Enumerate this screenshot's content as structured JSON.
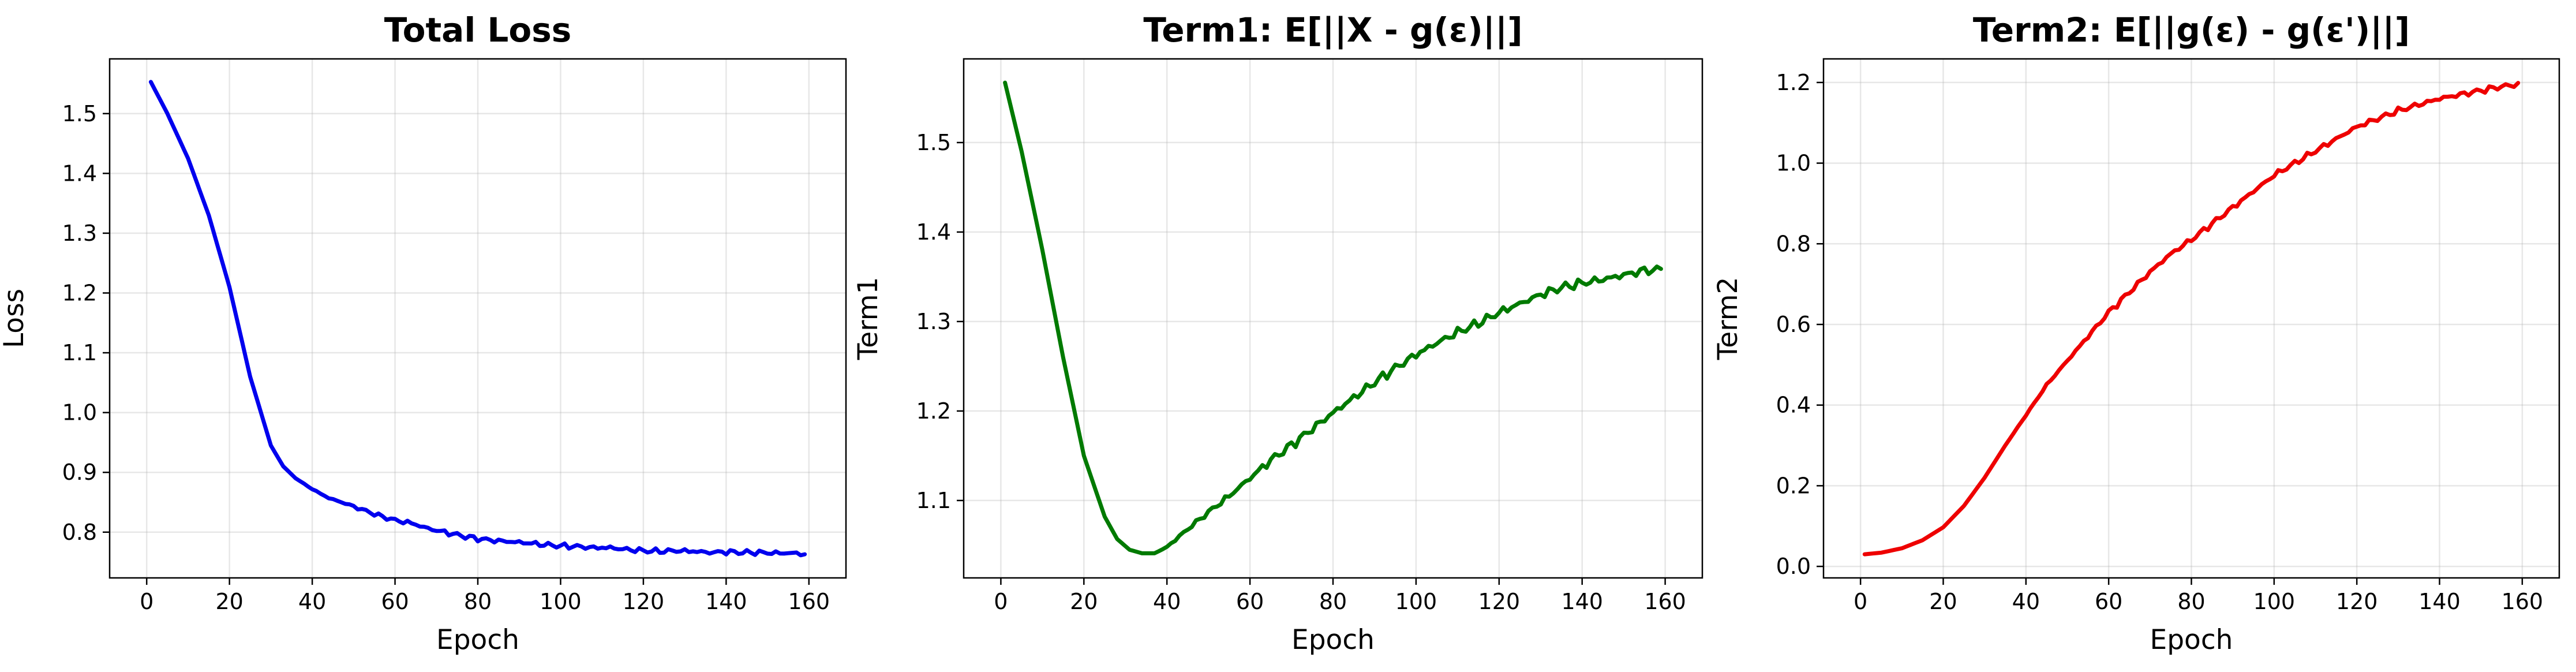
{
  "chart_data": [
    {
      "type": "line",
      "title": "Total Loss",
      "xlabel": "Epoch",
      "ylabel": "Loss",
      "xlim": [
        -8.95,
        168.95
      ],
      "ylim": [
        0.7235,
        1.5915
      ],
      "xticks": [
        0,
        20,
        40,
        60,
        80,
        100,
        120,
        140,
        160
      ],
      "xtick_labels": [
        "0",
        "20",
        "40",
        "60",
        "80",
        "100",
        "120",
        "140",
        "160"
      ],
      "yticks": [
        0.8,
        0.9,
        1.0,
        1.1,
        1.2,
        1.3,
        1.4,
        1.5
      ],
      "ytick_labels": [
        "0.8",
        "0.9",
        "1.0",
        "1.1",
        "1.2",
        "1.3",
        "1.4",
        "1.5"
      ],
      "grid": true,
      "color": "#0000ee",
      "series": [
        {
          "x": [
            1,
            5,
            10,
            15,
            20,
            25,
            30,
            33,
            36,
            40,
            44,
            48,
            52,
            56,
            60,
            64,
            68,
            72,
            76,
            80,
            84,
            88,
            92,
            96,
            100,
            104,
            108,
            112,
            116,
            120,
            124,
            128,
            132,
            136,
            140,
            144,
            148,
            152,
            156,
            159
          ],
          "y": [
            1.553,
            1.5,
            1.425,
            1.33,
            1.21,
            1.06,
            0.945,
            0.91,
            0.89,
            0.872,
            0.857,
            0.848,
            0.838,
            0.828,
            0.82,
            0.815,
            0.806,
            0.8,
            0.794,
            0.789,
            0.786,
            0.784,
            0.782,
            0.779,
            0.777,
            0.776,
            0.774,
            0.774,
            0.771,
            0.769,
            0.768,
            0.769,
            0.768,
            0.766,
            0.767,
            0.766,
            0.766,
            0.765,
            0.765,
            0.763
          ]
        }
      ]
    },
    {
      "type": "line",
      "title": "Term1: E[||X - g(ε)||]",
      "xlabel": "Epoch",
      "ylabel": "Term1",
      "xlim": [
        -8.95,
        168.95
      ],
      "ylim": [
        1.0135,
        1.5935
      ],
      "xticks": [
        0,
        20,
        40,
        60,
        80,
        100,
        120,
        140,
        160
      ],
      "xtick_labels": [
        "0",
        "20",
        "40",
        "60",
        "80",
        "100",
        "120",
        "140",
        "160"
      ],
      "yticks": [
        1.1,
        1.2,
        1.3,
        1.4,
        1.5
      ],
      "ytick_labels": [
        "1.1",
        "1.2",
        "1.3",
        "1.4",
        "1.5"
      ],
      "grid": true,
      "color": "#007a00",
      "series": [
        {
          "x": [
            1,
            5,
            10,
            15,
            20,
            25,
            28,
            31,
            34,
            37,
            40,
            45,
            50,
            55,
            60,
            65,
            70,
            75,
            80,
            85,
            90,
            95,
            100,
            105,
            110,
            115,
            120,
            125,
            130,
            135,
            140,
            145,
            150,
            155,
            159
          ],
          "y": [
            1.567,
            1.49,
            1.38,
            1.26,
            1.15,
            1.082,
            1.057,
            1.045,
            1.041,
            1.041,
            1.048,
            1.068,
            1.087,
            1.105,
            1.125,
            1.145,
            1.162,
            1.18,
            1.198,
            1.215,
            1.232,
            1.248,
            1.263,
            1.276,
            1.288,
            1.298,
            1.31,
            1.32,
            1.33,
            1.338,
            1.343,
            1.347,
            1.352,
            1.357,
            1.358
          ]
        }
      ]
    },
    {
      "type": "line",
      "title": "Term2: E[||g(ε) - g(ε')||]",
      "xlabel": "Epoch",
      "ylabel": "Term2",
      "xlim": [
        -8.95,
        168.95
      ],
      "ylim": [
        -0.0285,
        1.2585
      ],
      "xticks": [
        0,
        20,
        40,
        60,
        80,
        100,
        120,
        140,
        160
      ],
      "xtick_labels": [
        "0",
        "20",
        "40",
        "60",
        "80",
        "100",
        "120",
        "140",
        "160"
      ],
      "yticks": [
        0.0,
        0.2,
        0.4,
        0.6,
        0.8,
        1.0,
        1.2
      ],
      "ytick_labels": [
        "0.0",
        "0.2",
        "0.4",
        "0.6",
        "0.8",
        "1.0",
        "1.2"
      ],
      "grid": true,
      "color": "#ee0000",
      "series": [
        {
          "x": [
            1,
            5,
            10,
            15,
            20,
            25,
            30,
            35,
            40,
            45,
            50,
            55,
            60,
            65,
            70,
            75,
            80,
            85,
            90,
            95,
            100,
            105,
            110,
            115,
            120,
            125,
            130,
            135,
            140,
            145,
            150,
            155,
            159
          ],
          "y": [
            0.03,
            0.034,
            0.045,
            0.065,
            0.097,
            0.15,
            0.22,
            0.3,
            0.375,
            0.45,
            0.51,
            0.57,
            0.63,
            0.68,
            0.73,
            0.775,
            0.81,
            0.85,
            0.89,
            0.93,
            0.97,
            1.0,
            1.03,
            1.06,
            1.09,
            1.11,
            1.13,
            1.145,
            1.16,
            1.17,
            1.18,
            1.19,
            1.195
          ]
        }
      ]
    }
  ]
}
